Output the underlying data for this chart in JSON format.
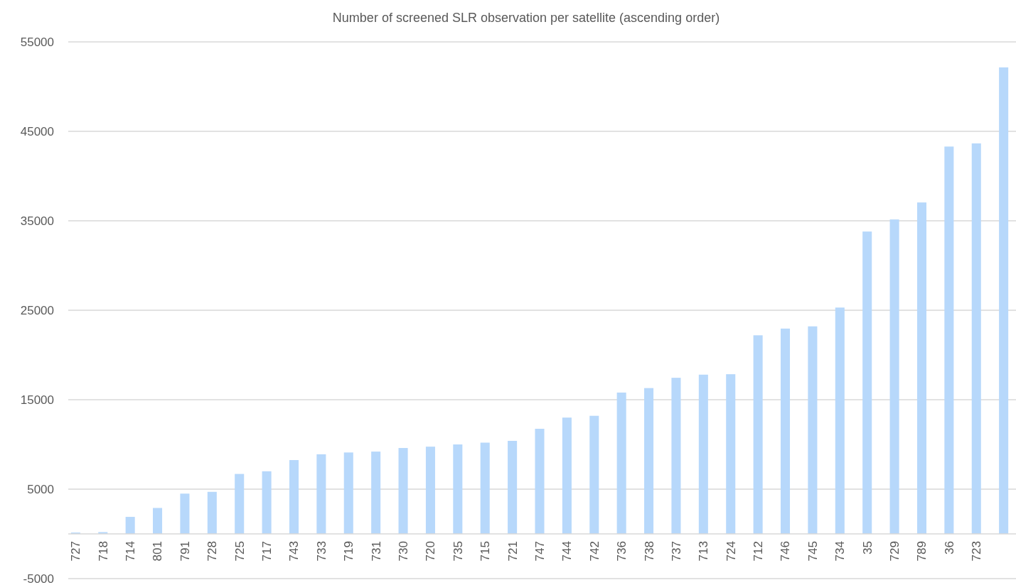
{
  "chart_data": {
    "type": "bar",
    "title": "Number of screened  SLR observation per satellite (ascending order)",
    "categories": [
      "727",
      "718",
      "714",
      "801",
      "791",
      "728",
      "725",
      "717",
      "743",
      "733",
      "719",
      "731",
      "730",
      "720",
      "735",
      "715",
      "721",
      "747",
      "744",
      "742",
      "736",
      "738",
      "737",
      "713",
      "724",
      "712",
      "746",
      "745",
      "734",
      "35",
      "729",
      "789",
      "36",
      "723",
      null
    ],
    "values": [
      150,
      200,
      1900,
      2900,
      4500,
      4700,
      6700,
      7000,
      8250,
      8900,
      9100,
      9200,
      9600,
      9750,
      10000,
      10200,
      10400,
      11750,
      13000,
      13200,
      15800,
      16300,
      17450,
      17800,
      17850,
      22200,
      22950,
      23200,
      25300,
      33800,
      35150,
      37050,
      43300,
      43650,
      52150
    ],
    "color": "#b7d8fb",
    "ylim": [
      -5000,
      55000
    ],
    "yticks": [
      -5000,
      5000,
      15000,
      25000,
      35000,
      45000,
      55000
    ],
    "grid": "y"
  }
}
